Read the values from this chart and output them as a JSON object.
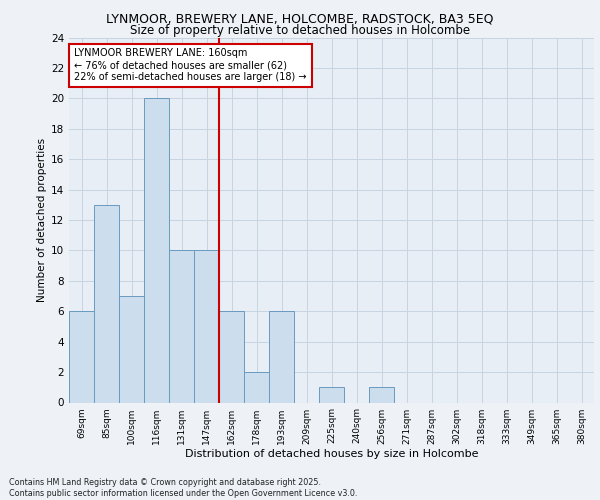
{
  "title_line1": "LYNMOOR, BREWERY LANE, HOLCOMBE, RADSTOCK, BA3 5EQ",
  "title_line2": "Size of property relative to detached houses in Holcombe",
  "xlabel": "Distribution of detached houses by size in Holcombe",
  "ylabel": "Number of detached properties",
  "categories": [
    "69sqm",
    "85sqm",
    "100sqm",
    "116sqm",
    "131sqm",
    "147sqm",
    "162sqm",
    "178sqm",
    "193sqm",
    "209sqm",
    "225sqm",
    "240sqm",
    "256sqm",
    "271sqm",
    "287sqm",
    "302sqm",
    "318sqm",
    "333sqm",
    "349sqm",
    "365sqm",
    "380sqm"
  ],
  "values": [
    6,
    13,
    7,
    20,
    10,
    10,
    6,
    2,
    6,
    0,
    1,
    0,
    1,
    0,
    0,
    0,
    0,
    0,
    0,
    0,
    0
  ],
  "bar_color": "#ccdded",
  "bar_edge_color": "#6a9abf",
  "grid_color": "#c8d4e0",
  "vline_index": 6,
  "vline_color": "#cc0000",
  "annotation_text": "LYNMOOR BREWERY LANE: 160sqm\n← 76% of detached houses are smaller (62)\n22% of semi-detached houses are larger (18) →",
  "annotation_box_color": "#cc0000",
  "ylim": [
    0,
    24
  ],
  "yticks": [
    0,
    2,
    4,
    6,
    8,
    10,
    12,
    14,
    16,
    18,
    20,
    22,
    24
  ],
  "footer": "Contains HM Land Registry data © Crown copyright and database right 2025.\nContains public sector information licensed under the Open Government Licence v3.0.",
  "bg_color": "#eef2f7",
  "plot_bg_color": "#e8eef6"
}
